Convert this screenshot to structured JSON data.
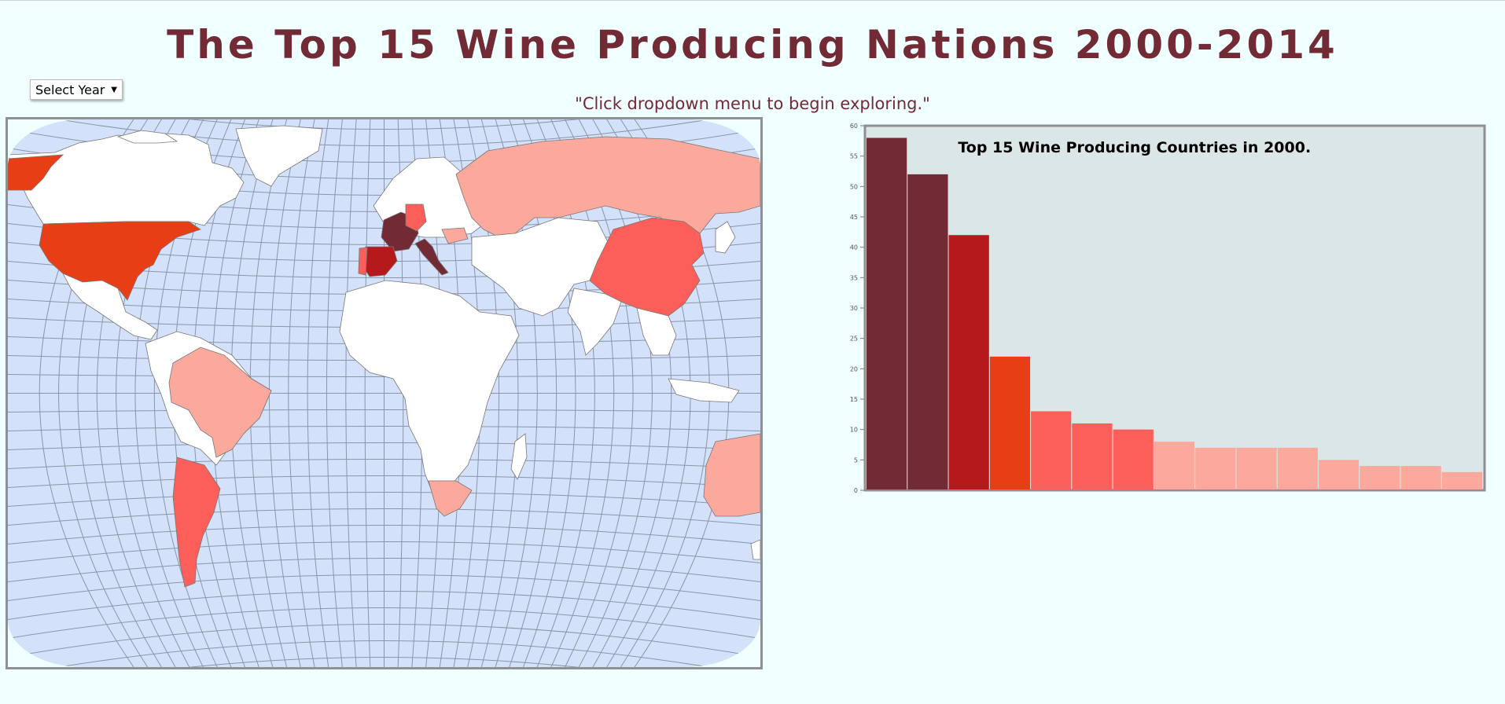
{
  "header": {
    "title": "The Top 15 Wine Producing Nations 2000-2014",
    "hint": "\"Click dropdown menu to begin exploring.\""
  },
  "controls": {
    "year_select_label": "Select Year",
    "year_select_icon": "triangle-down-icon"
  },
  "colors": {
    "page_bg": "#f0ffff",
    "title": "#722a35",
    "ocean": "#d4e1fa",
    "land_default": "#ffffff",
    "rank_1": "#722a35",
    "rank_2": "#b5191c",
    "rank_3": "#e83e16",
    "rank_4": "#fc5f5a",
    "rank_5": "#fca99d",
    "chart_bg": "#dbe6e6"
  },
  "map": {
    "projection": "world"
  },
  "chart_data": {
    "type": "bar",
    "title": "Top 15 Wine Producing Countries in 2000.",
    "xlabel": "",
    "ylabel": "",
    "ylim": [
      0,
      60
    ],
    "y_ticks": [
      0,
      5,
      10,
      15,
      20,
      25,
      30,
      35,
      40,
      45,
      50,
      55,
      60
    ],
    "values": [
      58,
      52,
      42,
      22,
      13,
      11,
      10,
      8,
      7,
      7,
      7,
      5,
      4,
      4,
      3
    ],
    "colors": [
      "#722a35",
      "#722a35",
      "#b5191c",
      "#e83e16",
      "#fc5f5a",
      "#fc5f5a",
      "#fc5f5a",
      "#fca99d",
      "#fca99d",
      "#fca99d",
      "#fca99d",
      "#fca99d",
      "#fca99d",
      "#fca99d",
      "#fca99d"
    ],
    "grid": false,
    "legend": "none"
  }
}
